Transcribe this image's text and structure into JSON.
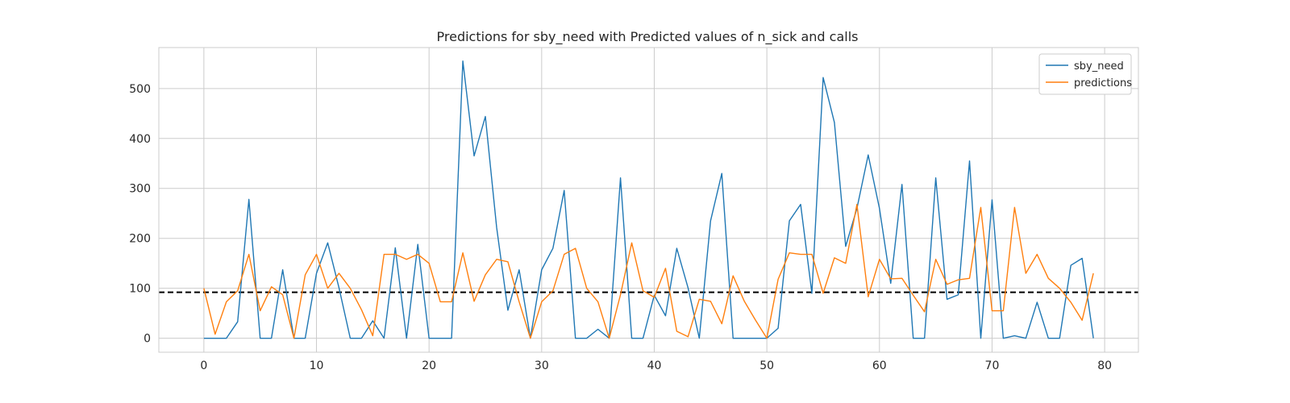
{
  "chart_data": {
    "type": "line",
    "title": "Predictions for sby_need with Predicted values of n_sick and calls",
    "xlabel": "",
    "ylabel": "",
    "xlim": [
      -4,
      83
    ],
    "ylim": [
      -28,
      582
    ],
    "xticks": [
      0,
      10,
      20,
      30,
      40,
      50,
      60,
      70,
      80
    ],
    "yticks": [
      0,
      100,
      200,
      300,
      400,
      500
    ],
    "grid": true,
    "legend": "top-right",
    "reference_line": {
      "y": 92,
      "style": "dashed",
      "color": "#000000"
    },
    "x": [
      0,
      1,
      2,
      3,
      4,
      5,
      6,
      7,
      8,
      9,
      10,
      11,
      12,
      13,
      14,
      15,
      16,
      17,
      18,
      19,
      20,
      21,
      22,
      23,
      24,
      25,
      26,
      27,
      28,
      29,
      30,
      31,
      32,
      33,
      34,
      35,
      36,
      37,
      38,
      39,
      40,
      41,
      42,
      43,
      44,
      45,
      46,
      47,
      48,
      49,
      50,
      51,
      52,
      53,
      54,
      55,
      56,
      57,
      58,
      59,
      60,
      61,
      62,
      63,
      64,
      65,
      66,
      67,
      68,
      69,
      70,
      71,
      72,
      73,
      74,
      75,
      76,
      77,
      78,
      79
    ],
    "series": [
      {
        "name": "sby_need",
        "color": "#1f77b4",
        "values": [
          0,
          0,
          0,
          33,
          278,
          0,
          0,
          137,
          0,
          0,
          130,
          191,
          101,
          0,
          0,
          35,
          0,
          181,
          0,
          188,
          0,
          0,
          0,
          555,
          365,
          444,
          222,
          56,
          137,
          0,
          137,
          180,
          296,
          0,
          0,
          18,
          0,
          321,
          0,
          0,
          86,
          45,
          180,
          101,
          0,
          235,
          330,
          0,
          0,
          0,
          0,
          20,
          235,
          268,
          90,
          522,
          432,
          184,
          260,
          367,
          260,
          110,
          308,
          0,
          0,
          321,
          78,
          87,
          355,
          0,
          277,
          0,
          5,
          0,
          72,
          0,
          0,
          146,
          160,
          0
        ]
      },
      {
        "name": "predictions",
        "color": "#ff7f0e",
        "values": [
          100,
          8,
          73,
          95,
          168,
          55,
          103,
          87,
          0,
          127,
          168,
          100,
          130,
          100,
          57,
          5,
          168,
          168,
          158,
          168,
          150,
          73,
          73,
          171,
          74,
          127,
          158,
          153,
          73,
          0,
          73,
          95,
          168,
          180,
          100,
          73,
          0,
          87,
          191,
          95,
          82,
          140,
          14,
          3,
          78,
          74,
          29,
          125,
          74,
          36,
          0,
          118,
          171,
          168,
          168,
          90,
          161,
          150,
          268,
          83,
          158,
          119,
          120,
          86,
          53,
          158,
          108,
          117,
          120,
          262,
          55,
          55,
          262,
          130,
          168,
          120,
          100,
          72,
          36,
          130
        ]
      }
    ]
  }
}
